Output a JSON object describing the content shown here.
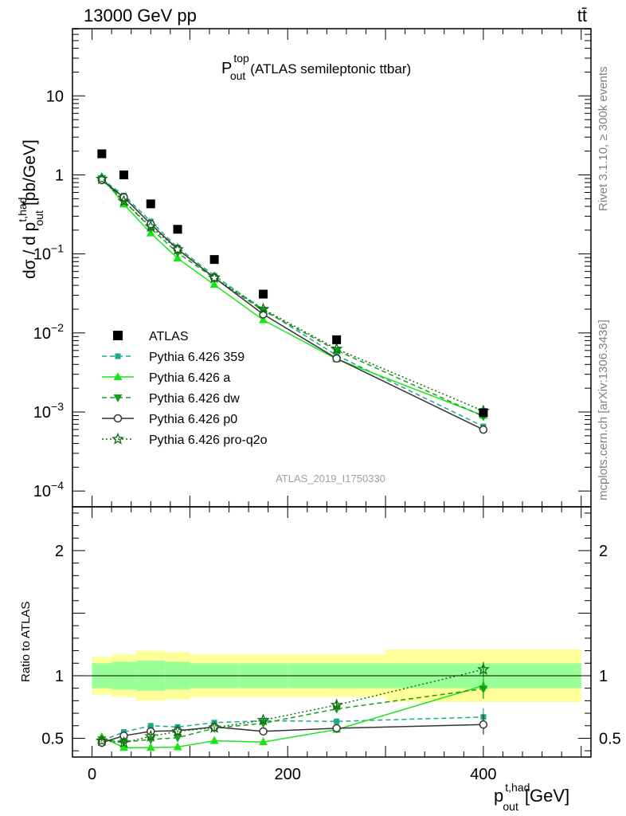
{
  "header": {
    "energy_label": "13000 GeV pp",
    "process_label": "tt̄"
  },
  "side_labels": {
    "rivet": "Rivet 3.1.10, ≥ 300k events",
    "mcplots": "mcplots.cern.ch [arXiv:1306.3436]"
  },
  "plot_title": {
    "main": "P",
    "sup": "top",
    "sub": "out",
    "rest": "(ATLAS semileptonic ttbar)"
  },
  "analysis_id": "ATLAS_2019_I1750330",
  "y_label_main": "dσ / d p",
  "y_label_sup": "t,had",
  "y_label_sub": "out",
  "y_label_unit": "[pb/GeV]",
  "ratio_ylabel": "Ratio to ATLAS",
  "x_label_main": "p",
  "x_label_sup": "t,had",
  "x_label_sub": "out",
  "x_label_unit": "[GeV]",
  "colors": {
    "atlas": "#000000",
    "p359": "#1aaa8c",
    "pa": "#19e619",
    "pdw": "#1a9d1a",
    "pp0": "#333333",
    "pq2o": "#0f6e0f",
    "band_outer": "#ffff99",
    "band_inner": "#99ff99"
  },
  "chart_data": {
    "type": "line",
    "x_range": [
      -20,
      510
    ],
    "main_y_log_range": [
      -4.2,
      1.85
    ],
    "ratio_y_range": [
      0.35,
      2.35
    ],
    "x_ticks": [
      "0",
      "200",
      "400"
    ],
    "main_y_ticks": [
      "10",
      "1",
      "10⁻¹",
      "10⁻²",
      "10⁻³",
      "10⁻⁴"
    ],
    "ratio_y_ticks": [
      "0.5",
      "1",
      "2"
    ],
    "bins": [
      [
        0,
        20
      ],
      [
        20,
        45
      ],
      [
        45,
        75
      ],
      [
        75,
        100
      ],
      [
        100,
        150
      ],
      [
        150,
        200
      ],
      [
        200,
        300
      ],
      [
        300,
        500
      ]
    ],
    "x": [
      10,
      32.5,
      60,
      87.5,
      125,
      175,
      250,
      400
    ],
    "atlas": [
      1.85,
      1.0,
      0.43,
      0.205,
      0.085,
      0.031,
      0.0082,
      0.00098
    ],
    "band_inner": [
      0.1,
      0.11,
      0.12,
      0.11,
      0.1,
      0.1,
      0.1,
      0.1
    ],
    "band_outer": [
      0.15,
      0.17,
      0.2,
      0.19,
      0.17,
      0.17,
      0.17,
      0.21
    ],
    "series": [
      {
        "name": "Pythia 6.426 359",
        "key": "p359",
        "style": "dashed",
        "marker": "square",
        "ratio": [
          0.48,
          0.55,
          0.6,
          0.59,
          0.625,
          0.64,
          0.635,
          0.67
        ],
        "ratio_err": [
          0.01,
          0.01,
          0.01,
          0.01,
          0.01,
          0.015,
          0.02,
          0.07
        ]
      },
      {
        "name": "Pythia 6.426 a",
        "key": "pa",
        "style": "solid",
        "marker": "triangle-up",
        "ratio": [
          0.51,
          0.425,
          0.425,
          0.43,
          0.48,
          0.47,
          0.57,
          0.92
        ],
        "ratio_err": [
          0.01,
          0.01,
          0.01,
          0.01,
          0.01,
          0.015,
          0.03,
          0.08
        ]
      },
      {
        "name": "Pythia 6.426 dw",
        "key": "pdw",
        "style": "dashed",
        "marker": "triangle-down",
        "ratio": [
          0.49,
          0.47,
          0.49,
          0.505,
          0.58,
          0.62,
          0.735,
          0.895
        ],
        "ratio_err": [
          0.01,
          0.01,
          0.01,
          0.01,
          0.012,
          0.015,
          0.03,
          0.08
        ]
      },
      {
        "name": "Pythia 6.426 p0",
        "key": "pp0",
        "style": "solid",
        "marker": "circle-open",
        "ratio": [
          0.465,
          0.52,
          0.555,
          0.56,
          0.59,
          0.555,
          0.58,
          0.61
        ],
        "ratio_err": [
          0.01,
          0.01,
          0.01,
          0.01,
          0.012,
          0.015,
          0.03,
          0.08
        ]
      },
      {
        "name": "Pythia 6.426 pro-q2o",
        "key": "pq2o",
        "style": "dotted",
        "marker": "star-open",
        "ratio": [
          0.48,
          0.465,
          0.515,
          0.555,
          0.585,
          0.645,
          0.765,
          1.05
        ],
        "ratio_err": [
          0.01,
          0.01,
          0.01,
          0.01,
          0.012,
          0.015,
          0.03,
          0.06
        ]
      }
    ],
    "legend": [
      "ATLAS",
      "Pythia 6.426 359",
      "Pythia 6.426 a",
      "Pythia 6.426 dw",
      "Pythia 6.426 p0",
      "Pythia 6.426 pro-q2o"
    ],
    "legend_placement": "bottom-left"
  }
}
